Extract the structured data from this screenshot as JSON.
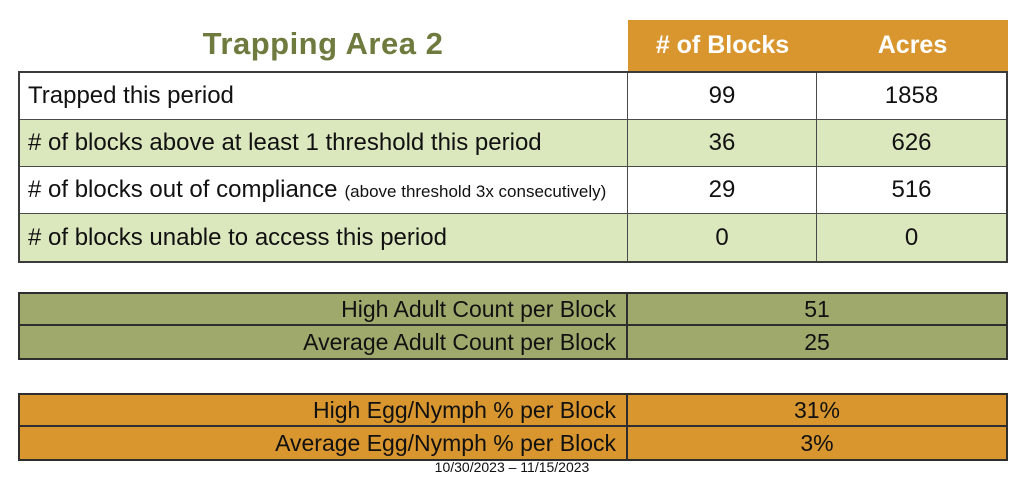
{
  "title": "Trapping Area 2",
  "date_range": "10/30/2023 – 11/15/2023",
  "colors": {
    "title_green": "#6E7A3E",
    "header_orange": "#D9962F",
    "stripe_light_green": "#DBE7BD",
    "adult_table_olive": "#9EA96B",
    "egg_table_orange": "#D9962F"
  },
  "main_table": {
    "columns": {
      "blocks": "# of Blocks",
      "acres": "Acres"
    },
    "rows": [
      {
        "label": "Trapped this period",
        "note": "",
        "blocks": "99",
        "acres": "1858"
      },
      {
        "label": "# of blocks above at least 1 threshold this period",
        "note": "",
        "blocks": "36",
        "acres": "626"
      },
      {
        "label": "# of blocks out of compliance",
        "note": "(above threshold 3x consecutively)",
        "blocks": "29",
        "acres": "516"
      },
      {
        "label": "# of blocks unable to access this period",
        "note": "",
        "blocks": "0",
        "acres": "0"
      }
    ]
  },
  "adult_table": {
    "rows": [
      {
        "label": "High Adult Count per Block",
        "value": "51"
      },
      {
        "label": "Average Adult Count per Block",
        "value": "25"
      }
    ]
  },
  "egg_table": {
    "rows": [
      {
        "label": "High Egg/Nymph % per Block",
        "value": "31%"
      },
      {
        "label": "Average Egg/Nymph % per Block",
        "value": "3%"
      }
    ]
  }
}
